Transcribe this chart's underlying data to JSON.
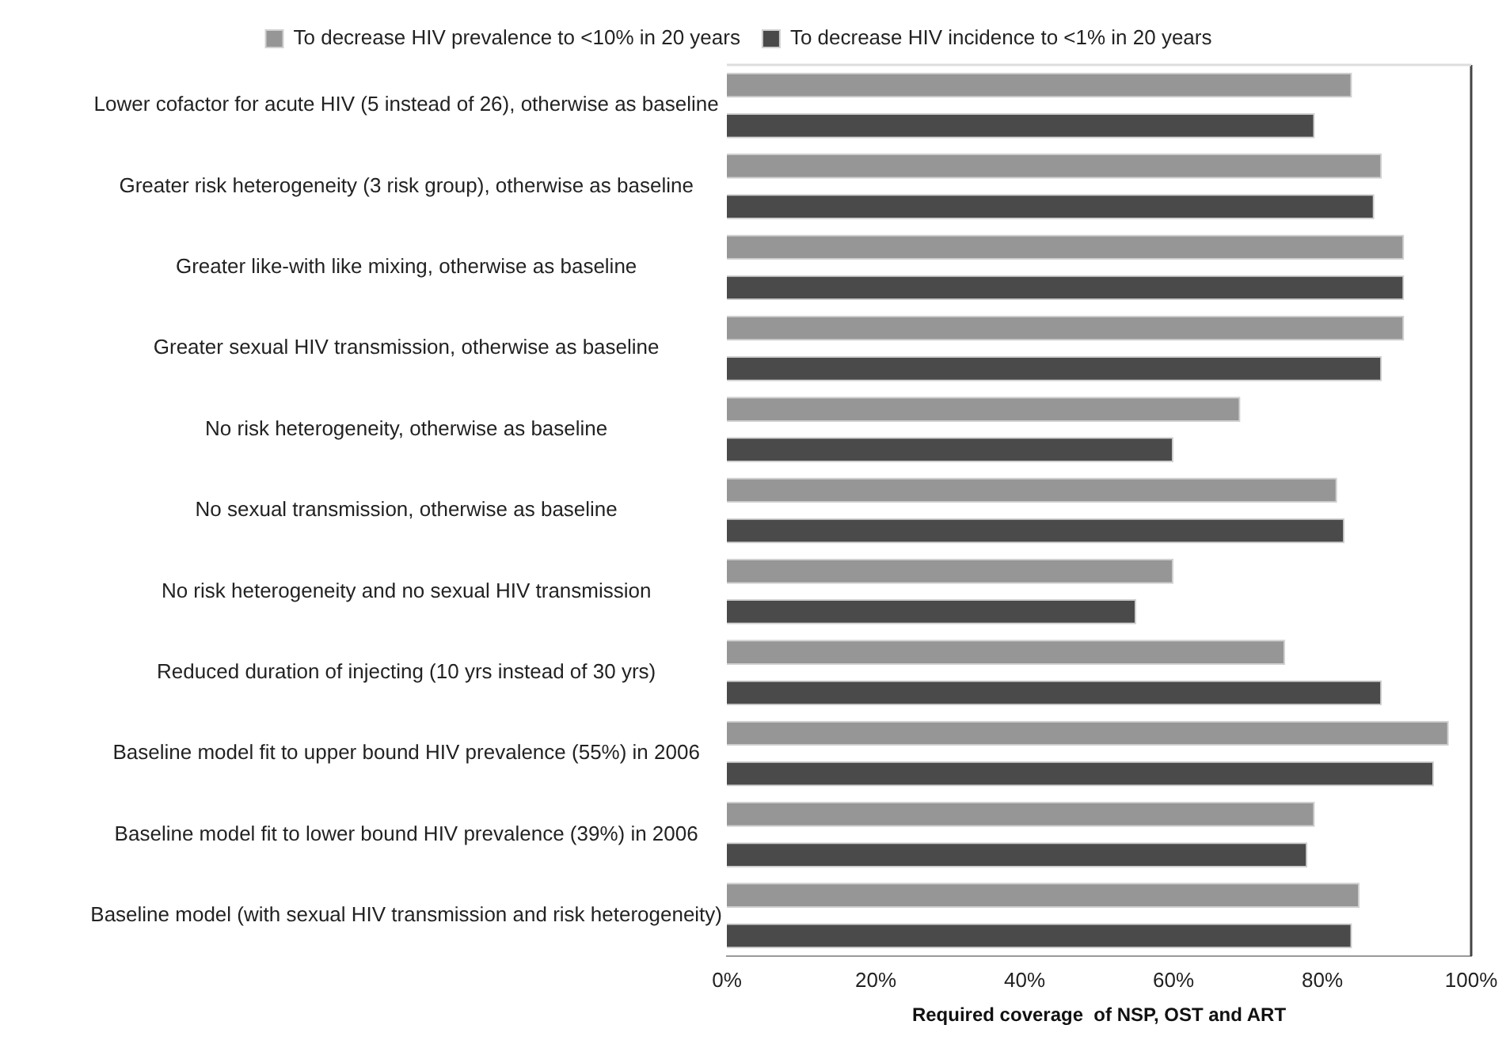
{
  "chart_data": {
    "type": "bar",
    "orientation": "horizontal",
    "xlabel": "Required coverage  of NSP, OST and ART",
    "categories": [
      "Lower cofactor for acute HIV (5 instead of 26), otherwise as baseline",
      "Greater risk heterogeneity (3 risk group), otherwise as baseline",
      "Greater like-with like mixing, otherwise as baseline",
      "Greater sexual HIV transmission, otherwise as baseline",
      "No risk heterogeneity, otherwise as baseline",
      "No sexual transmission, otherwise as baseline",
      "No risk heterogeneity and no sexual HIV transmission",
      "Reduced duration of injecting (10 yrs instead of 30 yrs)",
      "Baseline model fit to upper bound HIV prevalence (55%) in 2006",
      "Baseline model fit to lower bound HIV prevalence (39%) in 2006",
      "Baseline model (with sexual HIV transmission and risk heterogeneity)"
    ],
    "series": [
      {
        "name": "To decrease HIV prevalence to <10% in 20 years",
        "color": "#969696",
        "values": [
          84,
          88,
          91,
          91,
          69,
          82,
          60,
          75,
          97,
          79,
          85
        ]
      },
      {
        "name": "To decrease HIV incidence to <1% in 20 years",
        "color": "#4a4a4a",
        "values": [
          79,
          87,
          91,
          88,
          60,
          83,
          55,
          88,
          95,
          78,
          84
        ]
      }
    ],
    "xlim": [
      0,
      100
    ],
    "xticks": [
      {
        "value": 0,
        "label": "0%"
      },
      {
        "value": 20,
        "label": "20%"
      },
      {
        "value": 40,
        "label": "40%"
      },
      {
        "value": 60,
        "label": "60%"
      },
      {
        "value": 80,
        "label": "80%"
      },
      {
        "value": 100,
        "label": "100%"
      }
    ],
    "grid": false,
    "legend": "top"
  }
}
